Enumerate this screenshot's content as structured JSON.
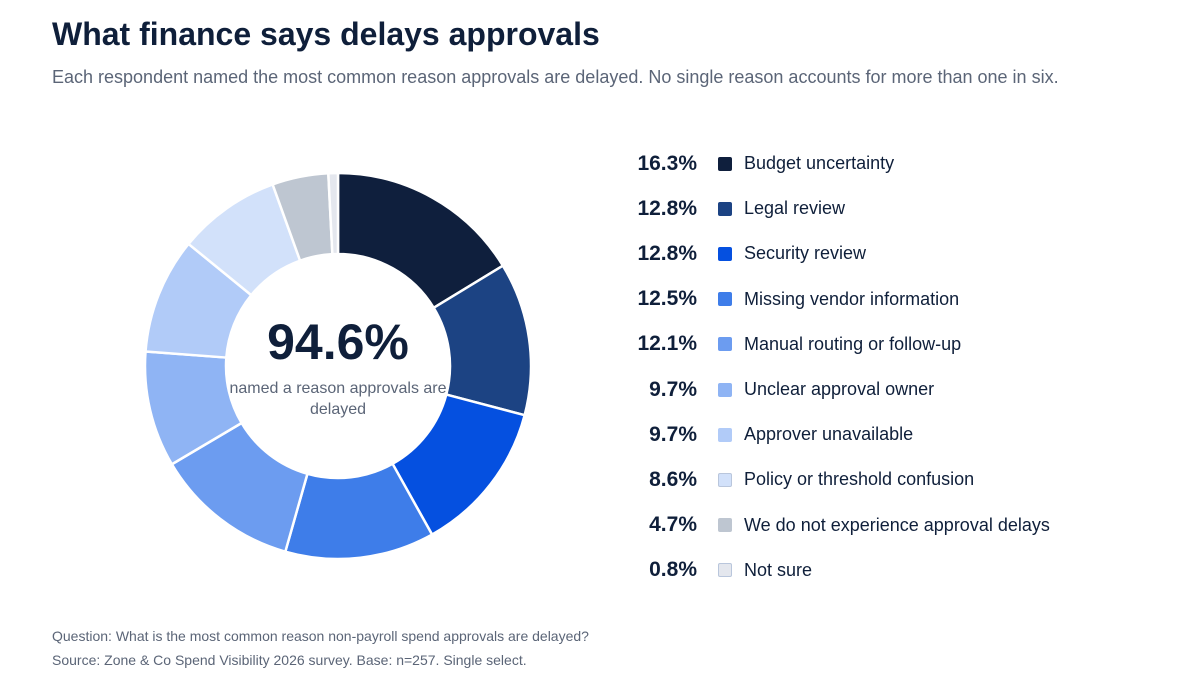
{
  "title": "What finance says delays approvals",
  "subtitle": "Each respondent named the most common reason approvals are delayed. No single reason accounts for more than one in six.",
  "center": {
    "value": "94.6%",
    "caption": "named a reason approvals are delayed"
  },
  "footnotes": {
    "question": "Question: What is the most common reason non-payroll spend approvals are delayed?",
    "source": "Source: Zone & Co Spend Visibility 2026 survey. Base: n=257. Single select."
  },
  "chart_data": {
    "type": "pie",
    "donut": true,
    "title": "What finance says delays approvals",
    "center_label": "94.6%",
    "legend_position": "right",
    "slices": [
      {
        "label": "Budget uncertainty",
        "value": 16.3,
        "display": "16.3%",
        "color": "#0f1f3d"
      },
      {
        "label": "Legal review",
        "value": 12.8,
        "display": "12.8%",
        "color": "#1c4383"
      },
      {
        "label": "Security review",
        "value": 12.8,
        "display": "12.8%",
        "color": "#0550e0"
      },
      {
        "label": "Missing vendor information",
        "value": 12.5,
        "display": "12.5%",
        "color": "#3e7de9"
      },
      {
        "label": "Manual routing or follow-up",
        "value": 12.1,
        "display": "12.1%",
        "color": "#6c9cf0"
      },
      {
        "label": "Unclear approval owner",
        "value": 9.7,
        "display": "9.7%",
        "color": "#8fb4f4"
      },
      {
        "label": "Approver unavailable",
        "value": 9.7,
        "display": "9.7%",
        "color": "#b1cbf8"
      },
      {
        "label": "Policy or threshold confusion",
        "value": 8.6,
        "display": "8.6%",
        "color": "#d2e1fa"
      },
      {
        "label": "We do not experience approval delays",
        "value": 4.7,
        "display": "4.7%",
        "color": "#bec6d1"
      },
      {
        "label": "Not sure",
        "value": 0.8,
        "display": "0.8%",
        "color": "#e4e7ee"
      }
    ]
  }
}
